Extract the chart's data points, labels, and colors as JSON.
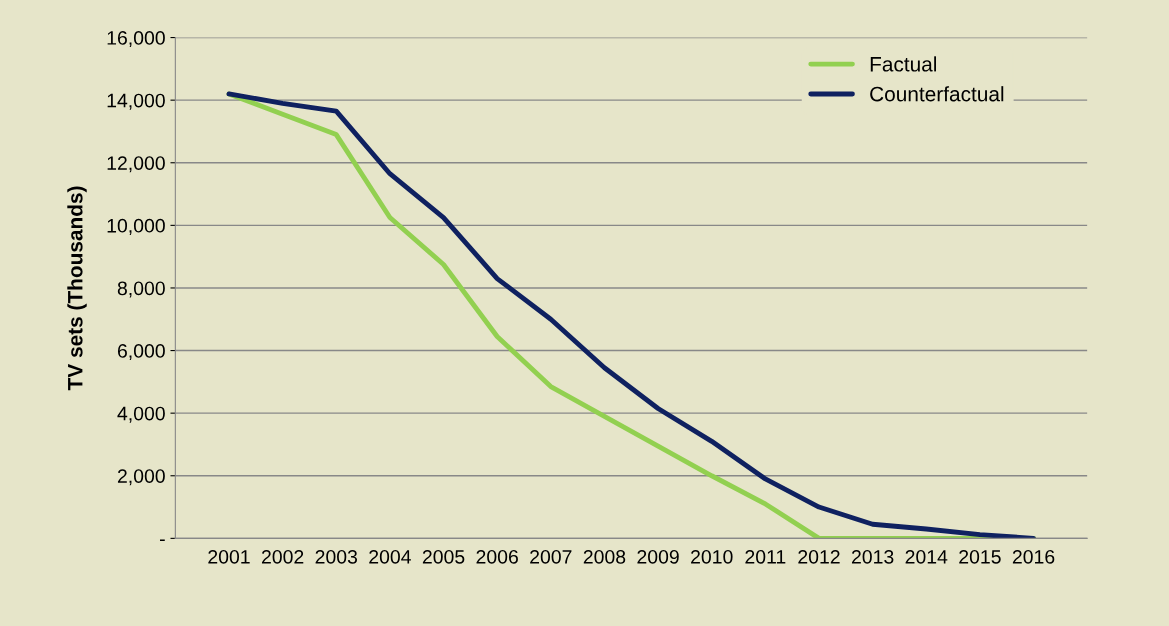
{
  "chart_data": {
    "type": "line",
    "ylabel": "TV sets (Thousands)",
    "categories": [
      "2001",
      "2002",
      "2003",
      "2004",
      "2005",
      "2006",
      "2007",
      "2008",
      "2009",
      "2010",
      "2011",
      "2012",
      "2013",
      "2014",
      "2015",
      "2016"
    ],
    "series": [
      {
        "name": "Factual",
        "color": "#92d050",
        "values": [
          14200,
          13550,
          12900,
          10250,
          8750,
          6450,
          4850,
          3900,
          2950,
          2000,
          1100,
          0,
          0,
          0,
          0,
          0
        ]
      },
      {
        "name": "Counterfactual",
        "color": "#0f2160",
        "values": [
          14200,
          13900,
          13650,
          11650,
          10250,
          8300,
          7000,
          5450,
          4150,
          3100,
          1900,
          1000,
          450,
          300,
          120,
          0
        ]
      }
    ],
    "ylim": [
      0,
      16000
    ],
    "yticks": [
      {
        "value": 0,
        "label": "-"
      },
      {
        "value": 2000,
        "label": "2,000"
      },
      {
        "value": 4000,
        "label": "4,000"
      },
      {
        "value": 6000,
        "label": "6,000"
      },
      {
        "value": 8000,
        "label": "8,000"
      },
      {
        "value": 10000,
        "label": "10,000"
      },
      {
        "value": 12000,
        "label": "12,000"
      },
      {
        "value": 14000,
        "label": "14,000"
      },
      {
        "value": 16000,
        "label": "16,000"
      }
    ],
    "grid": "y",
    "legend": "top right",
    "marker": "none",
    "line_style": "solid"
  }
}
